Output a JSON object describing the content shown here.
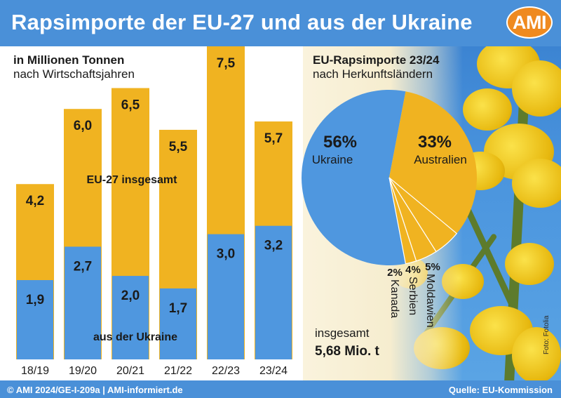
{
  "header": {
    "title": "Rapsimporte der EU-27 und aus der Ukraine",
    "logo": "AMI"
  },
  "colors": {
    "header_blue": "#4a90d8",
    "eu_bar": "#f0b321",
    "ukraine_bar": "#4f97df",
    "logo_orange": "#ef8a1f"
  },
  "chart_data": [
    {
      "type": "bar",
      "title": "in Millionen Tonnen",
      "subtitle": "nach Wirtschaftsjahren",
      "categories": [
        "18/19",
        "19/20",
        "20/21",
        "21/22",
        "22/23",
        "23/24"
      ],
      "series": [
        {
          "name": "EU-27 insgesamt",
          "values": [
            4.2,
            6.0,
            6.5,
            5.5,
            7.5,
            5.7
          ],
          "labels": [
            "4,2",
            "6,0",
            "6,5",
            "5,5",
            "7,5",
            "5,7"
          ],
          "color": "#f0b321"
        },
        {
          "name": "aus der Ukraine",
          "values": [
            1.9,
            2.7,
            2.0,
            1.7,
            3.0,
            3.2
          ],
          "labels": [
            "1,9",
            "2,7",
            "2,0",
            "1,7",
            "3,0",
            "3,2"
          ],
          "color": "#4f97df"
        }
      ],
      "ylim": [
        0,
        7.5
      ],
      "grid": false
    },
    {
      "type": "pie",
      "title": "EU-Rapsimporte 23/24",
      "subtitle": "nach Herkunftsländern",
      "slices": [
        {
          "name": "Ukraine",
          "value": 56,
          "label": "56%",
          "color": "#4f97df"
        },
        {
          "name": "Australien",
          "value": 33,
          "label": "33%",
          "color": "#f0b321"
        },
        {
          "name": "Moldawien",
          "value": 5,
          "label": "5%",
          "color": "#f0b321"
        },
        {
          "name": "Serbien",
          "value": 4,
          "label": "4%",
          "color": "#f0b321"
        },
        {
          "name": "Kanada",
          "value": 2,
          "label": "2%",
          "color": "#f0b321"
        }
      ],
      "total_label": "insgesamt",
      "total_value": "5,68 Mio. t"
    }
  ],
  "photo_credit": "Foto: Fotolia",
  "footer": {
    "left": "© AMI 2024/GE-I-209a | AMI-informiert.de",
    "right": "Quelle: EU-Kommission"
  }
}
